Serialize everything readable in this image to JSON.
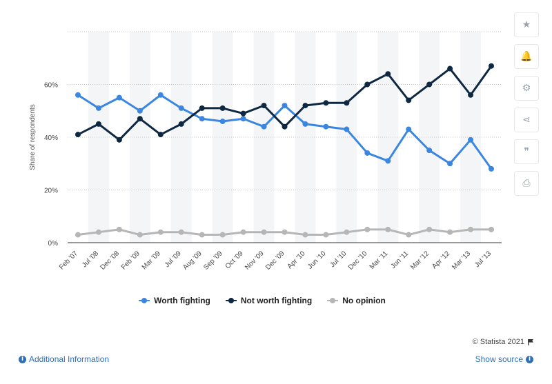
{
  "toolbar": {
    "buttons": [
      {
        "name": "star-icon",
        "glyph": "★"
      },
      {
        "name": "bell-icon",
        "glyph": "🔔"
      },
      {
        "name": "gear-icon",
        "glyph": "⚙"
      },
      {
        "name": "share-icon",
        "glyph": "⋖"
      },
      {
        "name": "quote-icon",
        "glyph": "❞"
      },
      {
        "name": "print-icon",
        "glyph": "⎙"
      }
    ]
  },
  "footer": {
    "credit": "© Statista 2021",
    "additional_info": "Additional Information",
    "show_source": "Show source",
    "info_glyph": "i"
  },
  "colors": {
    "worth": "#3a86e0",
    "not_worth": "#0e2841",
    "no_opinion": "#b6b6b6",
    "band": "#f4f5f7",
    "grid": "#c9c9c9"
  },
  "chart_data": {
    "type": "line",
    "ylabel": "Share of respondents",
    "xlabel": "",
    "ylim": [
      0,
      80
    ],
    "yticks": [
      0,
      20,
      40,
      60
    ],
    "ytick_labels": [
      "0%",
      "20%",
      "40%",
      "60%"
    ],
    "grid": true,
    "legend_position": "bottom",
    "categories": [
      "Feb '07",
      "Jul '08",
      "Dec '08",
      "Feb '09",
      "Mar '09",
      "Jul '09",
      "Aug '09",
      "Sep '09",
      "Oct '09",
      "Nov '09",
      "Dec '09",
      "Apr '10",
      "Jun '10",
      "Jul '10",
      "Dec '10",
      "Mar '11",
      "Jun '11",
      "Mar '12",
      "Apr '12",
      "Mar '13",
      "Jul '13"
    ],
    "series": [
      {
        "name": "Worth fighting",
        "color_key": "worth",
        "values": [
          56,
          51,
          55,
          50,
          56,
          51,
          47,
          46,
          47,
          44,
          52,
          45,
          44,
          43,
          34,
          31,
          43,
          35,
          30,
          39,
          28
        ]
      },
      {
        "name": "Not worth fighting",
        "color_key": "not_worth",
        "values": [
          41,
          45,
          39,
          47,
          41,
          45,
          51,
          51,
          49,
          52,
          44,
          52,
          53,
          53,
          60,
          64,
          54,
          60,
          66,
          56,
          67
        ]
      },
      {
        "name": "No opinion",
        "color_key": "no_opinion",
        "values": [
          3,
          4,
          5,
          3,
          4,
          4,
          3,
          3,
          4,
          4,
          4,
          3,
          3,
          4,
          5,
          5,
          3,
          5,
          4,
          5,
          5
        ]
      }
    ]
  }
}
